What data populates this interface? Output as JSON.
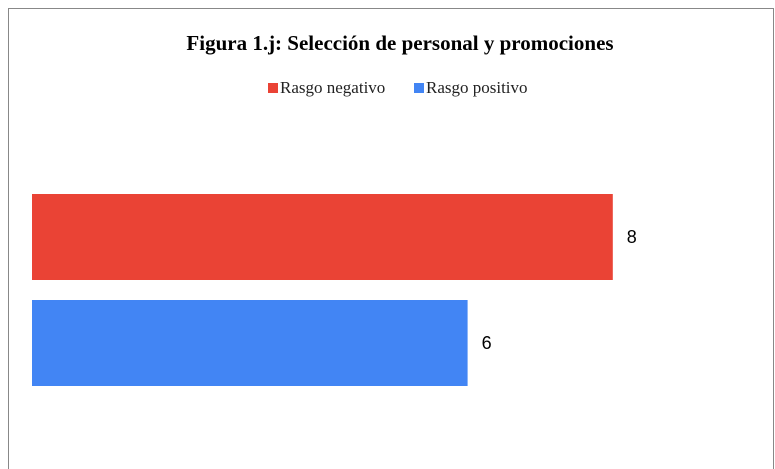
{
  "chart_data": {
    "type": "bar",
    "orientation": "horizontal",
    "title": "Figura 1.j: Selección de personal y promociones",
    "categories": [
      null
    ],
    "series": [
      {
        "name": "Rasgo negativo",
        "color": "#ea4335",
        "values": [
          8
        ]
      },
      {
        "name": "Rasgo positivo",
        "color": "#4285f4",
        "values": [
          6
        ]
      }
    ],
    "xlim": [
      0,
      10
    ],
    "legend": "top"
  }
}
